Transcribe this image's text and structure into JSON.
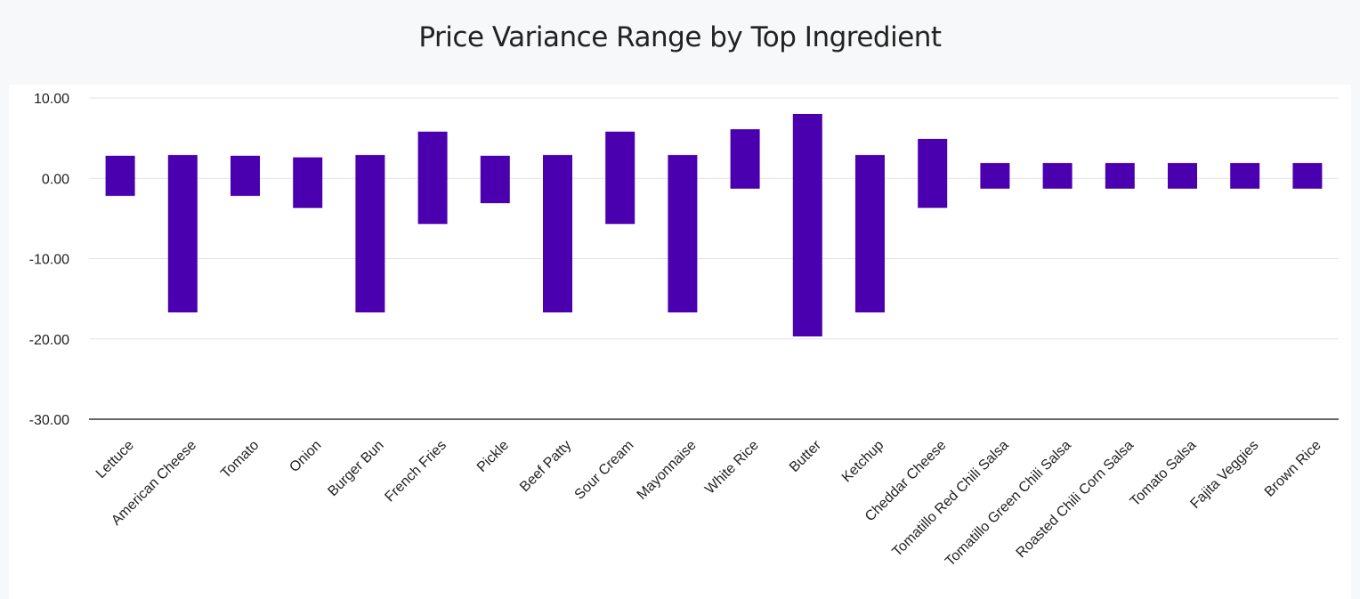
{
  "title": "Price Variance Range by Top Ingredient",
  "colors": {
    "bar": "#4b00b0",
    "grid": "#e3e3e3",
    "axis": "#333333"
  },
  "chart_data": {
    "type": "bar",
    "subtype": "floating-range",
    "title": "Price Variance Range by Top Ingredient",
    "xlabel": "",
    "ylabel": "",
    "ylim": [
      -30,
      10
    ],
    "yticks": [
      10,
      0,
      -10,
      -20,
      -30
    ],
    "ytick_labels": [
      "10.00",
      "0.00",
      "-10.00",
      "-20.00",
      "-30.00"
    ],
    "grid": true,
    "categories": [
      "Lettuce",
      "American Cheese",
      "Tomato",
      "Onion",
      "Burger Bun",
      "French Fries",
      "Pickle",
      "Beef Patty",
      "Sour Cream",
      "Mayonnaise",
      "White Rice",
      "Butter",
      "Ketchup",
      "Cheddar Cheese",
      "Tomatillo Red Chili Salsa",
      "Tomatillo Green Chili Salsa",
      "Roasted Chili Corn Salsa",
      "Tomato Salsa",
      "Fajita Veggies",
      "Brown Rice"
    ],
    "series": [
      {
        "name": "Price Variance Range",
        "low": [
          -2.2,
          -16.7,
          -2.2,
          -3.7,
          -16.7,
          -5.7,
          -3.1,
          -16.7,
          -5.7,
          -16.7,
          -1.3,
          -19.7,
          -16.7,
          -3.7,
          -1.3,
          -1.3,
          -1.3,
          -1.3,
          -1.3,
          -1.3
        ],
        "high": [
          2.8,
          2.9,
          2.8,
          2.6,
          2.9,
          5.8,
          2.8,
          2.9,
          5.8,
          2.9,
          6.1,
          8.0,
          2.9,
          4.9,
          1.9,
          1.9,
          1.9,
          1.9,
          1.9,
          1.9
        ]
      }
    ]
  }
}
